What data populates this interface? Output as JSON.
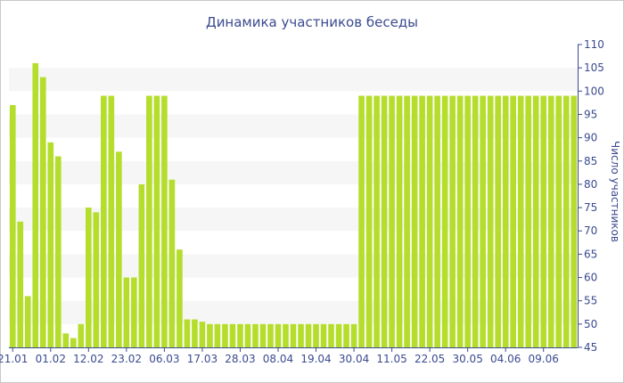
{
  "chart_data": {
    "type": "bar",
    "title": "Динамика участников беседы",
    "xlabel": "",
    "ylabel": "Число участников",
    "ylim": [
      45,
      110
    ],
    "yticks": [
      45,
      50,
      55,
      60,
      65,
      70,
      75,
      80,
      85,
      90,
      95,
      100,
      105,
      110
    ],
    "y_axis_side": "right",
    "grid": "alternating horizontal bands",
    "bar_color": "#b5dd2c",
    "band_color": "#f6f6f6",
    "text_color": "#3b4a8f",
    "x_tick_labels": [
      {
        "label": "21.01",
        "index": 0
      },
      {
        "label": "01.02",
        "index": 5
      },
      {
        "label": "12.02",
        "index": 10
      },
      {
        "label": "23.02",
        "index": 15
      },
      {
        "label": "06.03",
        "index": 20
      },
      {
        "label": "17.03",
        "index": 25
      },
      {
        "label": "28.03",
        "index": 30
      },
      {
        "label": "08.04",
        "index": 35
      },
      {
        "label": "19.04",
        "index": 40
      },
      {
        "label": "30.04",
        "index": 45
      },
      {
        "label": "11.05",
        "index": 50
      },
      {
        "label": "22.05",
        "index": 55
      },
      {
        "label": "30.05",
        "index": 60
      },
      {
        "label": "04.06",
        "index": 65
      },
      {
        "label": "09.06",
        "index": 70
      }
    ],
    "values": [
      97,
      72,
      56,
      106,
      103,
      89,
      86,
      48,
      47,
      50,
      75,
      74,
      99,
      99,
      87,
      60,
      60,
      80,
      99,
      99,
      99,
      81,
      66,
      51,
      51,
      50.5,
      50,
      50,
      50,
      50,
      50,
      50,
      50,
      50,
      50,
      50,
      50,
      50,
      50,
      50,
      50,
      50,
      50,
      50,
      50,
      50,
      99,
      99,
      99,
      99,
      99,
      99,
      99,
      99,
      99,
      99,
      99,
      99,
      99,
      99,
      99,
      99,
      99,
      99,
      99,
      99,
      99,
      99,
      99,
      99,
      99,
      99,
      99,
      99,
      99
    ]
  }
}
